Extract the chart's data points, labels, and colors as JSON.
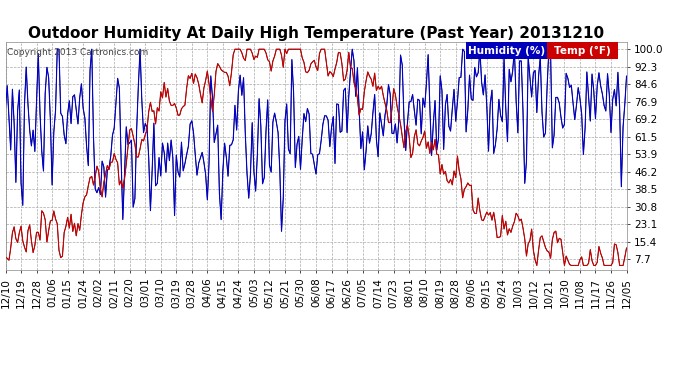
{
  "title": "Outdoor Humidity At Daily High Temperature (Past Year) 20131210",
  "copyright": "Copyright 2013 Cartronics.com",
  "legend_humidity": "Humidity (%)",
  "legend_temp": "Temp (°F)",
  "legend_humidity_bg": "#0000bb",
  "legend_temp_bg": "#cc0000",
  "y_ticks": [
    7.7,
    15.4,
    23.1,
    30.8,
    38.5,
    46.2,
    53.9,
    61.5,
    69.2,
    76.9,
    84.6,
    92.3,
    100.0
  ],
  "ylim": [
    3,
    103
  ],
  "x_labels": [
    "12/10",
    "12/19",
    "12/28",
    "01/06",
    "01/15",
    "01/24",
    "02/02",
    "02/11",
    "02/20",
    "03/01",
    "03/10",
    "03/19",
    "03/28",
    "04/06",
    "04/15",
    "04/24",
    "05/03",
    "05/12",
    "05/21",
    "05/30",
    "06/08",
    "06/17",
    "06/26",
    "07/05",
    "07/14",
    "07/23",
    "08/01",
    "08/10",
    "08/19",
    "08/28",
    "09/06",
    "09/15",
    "09/24",
    "10/03",
    "10/12",
    "10/21",
    "10/30",
    "11/08",
    "11/17",
    "11/26",
    "12/05"
  ],
  "background_color": "#ffffff",
  "plot_bg_color": "#ffffff",
  "grid_color": "#aaaaaa",
  "title_fontsize": 11,
  "tick_fontsize": 7.5,
  "copyright_fontsize": 6.5,
  "legend_fontsize": 7.5,
  "humidity_color": "#0000cc",
  "temp_color": "#cc0000",
  "black_color": "#000000",
  "n_days": 361
}
